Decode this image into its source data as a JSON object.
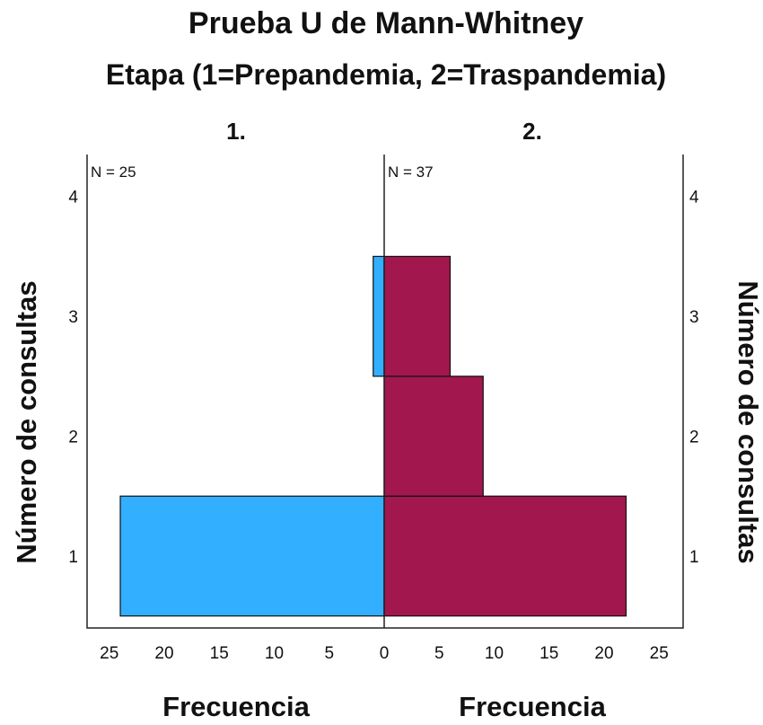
{
  "chart_data": {
    "type": "bar",
    "orientation": "horizontal-back-to-back",
    "title": "Prueba U de Mann-Whitney",
    "subtitle": "Etapa (1=Prepandemia, 2=Traspandemia)",
    "groups": [
      {
        "label": "1.",
        "n_label": "N = 25",
        "color": "#33AFFF",
        "values": [
          24,
          0,
          1
        ]
      },
      {
        "label": "2.",
        "n_label": "N = 37",
        "color": "#A2174D",
        "values": [
          22,
          9,
          6
        ]
      }
    ],
    "categories": [
      1,
      2,
      3
    ],
    "y_ticks": [
      "1",
      "2",
      "3",
      "4"
    ],
    "ylim": [
      0.4,
      4.35
    ],
    "x_ticks_left": [
      "25",
      "20",
      "15",
      "10",
      "5",
      "0"
    ],
    "x_ticks_right": [
      "0",
      "5",
      "10",
      "15",
      "20",
      "25"
    ],
    "xlim": [
      0,
      27.5
    ],
    "xlabel_left": "Frecuencia",
    "xlabel_right": "Frecuencia",
    "ylabel_left": "Número de consultas",
    "ylabel_right": "Número de consultas"
  }
}
